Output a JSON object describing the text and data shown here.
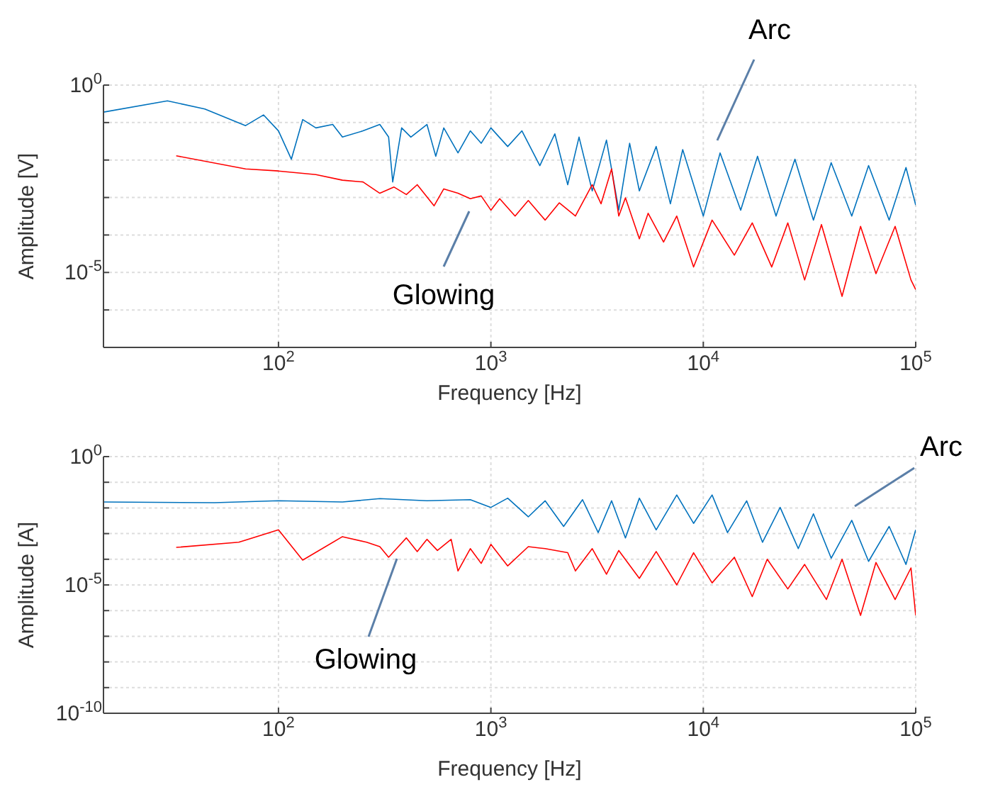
{
  "chart_data": [
    {
      "type": "line",
      "xlabel": "Frequency [Hz]",
      "ylabel": "Amplitude [V]",
      "log": "xy",
      "grid": true,
      "xlim": [
        15,
        100000
      ],
      "ylim": [
        1e-07,
        1
      ],
      "xticks": [
        {
          "value": 100,
          "label": "10$^{2}$"
        },
        {
          "value": 1000,
          "label": "10$^{3}$"
        },
        {
          "value": 10000,
          "label": "10$^{4}$"
        },
        {
          "value": 100000,
          "label": "10$^{5}$"
        }
      ],
      "yticks": [
        {
          "value": 1e-07,
          "label": null
        },
        {
          "value": 1e-06,
          "label": null
        },
        {
          "value": 1e-05,
          "label": "10$^{-5}$"
        },
        {
          "value": 0.0001,
          "label": null
        },
        {
          "value": 0.001,
          "label": null
        },
        {
          "value": 0.01,
          "label": null
        },
        {
          "value": 0.1,
          "label": null
        },
        {
          "value": 1,
          "label": "10$^{0}$"
        }
      ],
      "series": [
        {
          "color": "#0072bd",
          "x": [
            15,
            30,
            45,
            70,
            85,
            100,
            115,
            130,
            150,
            180,
            200,
            250,
            300,
            330,
            345,
            380,
            420,
            500,
            550,
            600,
            700,
            800,
            900,
            1000,
            1200,
            1400,
            1700,
            2000,
            2300,
            2600,
            3000,
            3500,
            4000,
            4500,
            5000,
            6000,
            7000,
            8000,
            10000,
            12000,
            15000,
            18000,
            22000,
            27000,
            33000,
            40000,
            50000,
            60000,
            75000,
            90000,
            100000
          ],
          "values": [
            0.19,
            0.38,
            0.23,
            0.083,
            0.16,
            0.06,
            0.0105,
            0.12,
            0.072,
            0.089,
            0.041,
            0.06,
            0.089,
            0.041,
            0.0026,
            0.072,
            0.041,
            0.089,
            0.0126,
            0.072,
            0.0155,
            0.06,
            0.028,
            0.072,
            0.023,
            0.06,
            0.0071,
            0.05,
            0.0022,
            0.041,
            0.0015,
            0.034,
            0.00046,
            0.028,
            0.0015,
            0.023,
            0.00068,
            0.019,
            0.00032,
            0.0155,
            0.00046,
            0.0126,
            0.00032,
            0.0105,
            0.00025,
            0.0085,
            0.00032,
            0.0071,
            0.00025,
            0.0063,
            0.00063
          ]
        },
        {
          "color": "#ff0000",
          "x": [
            33,
            70,
            100,
            150,
            200,
            250,
            300,
            350,
            400,
            450,
            540,
            600,
            700,
            800,
            900,
            1000,
            1100,
            1300,
            1500,
            1800,
            2100,
            2500,
            3000,
            3300,
            3700,
            4000,
            4300,
            5000,
            5500,
            6500,
            7500,
            9000,
            11000,
            14000,
            17000,
            21000,
            25000,
            30000,
            36000,
            45000,
            55000,
            65000,
            80000,
            95000,
            100000
          ],
          "values": [
            0.013,
            0.0058,
            0.0051,
            0.0041,
            0.0029,
            0.0026,
            0.0013,
            0.0019,
            0.0012,
            0.0022,
            0.0006,
            0.0017,
            0.0013,
            0.00093,
            0.0011,
            0.00046,
            0.00093,
            0.00032,
            0.00083,
            0.00025,
            0.00072,
            0.00032,
            0.0022,
            0.00068,
            0.0058,
            0.00032,
            0.00098,
            7.9e-05,
            0.00038,
            6.5e-05,
            0.00032,
            1.4e-05,
            0.00025,
            2.9e-05,
            0.00021,
            1.4e-05,
            0.00021,
            6.3e-06,
            0.00019,
            2.3e-06,
            0.00017,
            9.3e-06,
            0.00017,
            6.3e-06,
            3.5e-06
          ]
        }
      ],
      "annotations": [
        "Arc",
        "Glowing"
      ]
    },
    {
      "type": "line",
      "xlabel": "Frequency [Hz]",
      "ylabel": "Amplitude [A]",
      "log": "xy",
      "grid": true,
      "xlim": [
        15,
        100000
      ],
      "ylim": [
        1e-10,
        1
      ],
      "xticks": [
        {
          "value": 100,
          "label": "10$^{2}$"
        },
        {
          "value": 1000,
          "label": "10$^{3}$"
        },
        {
          "value": 10000,
          "label": "10$^{4}$"
        },
        {
          "value": 100000,
          "label": "10$^{5}$"
        }
      ],
      "yticks": [
        {
          "value": 1e-10,
          "label": "10$^{-10}$"
        },
        {
          "value": 1e-09,
          "label": null
        },
        {
          "value": 1e-08,
          "label": null
        },
        {
          "value": 1e-07,
          "label": null
        },
        {
          "value": 1e-06,
          "label": null
        },
        {
          "value": 1e-05,
          "label": "10$^{-5}$"
        },
        {
          "value": 0.0001,
          "label": null
        },
        {
          "value": 0.001,
          "label": null
        },
        {
          "value": 0.01,
          "label": null
        },
        {
          "value": 0.1,
          "label": null
        },
        {
          "value": 1,
          "label": "10$^{0}$"
        }
      ],
      "series": [
        {
          "color": "#0072bd",
          "x": [
            15,
            50,
            100,
            200,
            300,
            500,
            800,
            1000,
            1200,
            1500,
            1800,
            2200,
            2700,
            3200,
            3700,
            4300,
            5000,
            6000,
            7500,
            9000,
            11000,
            13000,
            16000,
            19000,
            23000,
            28000,
            33000,
            40000,
            50000,
            60000,
            75000,
            90000,
            100000
          ],
          "values": [
            0.017,
            0.016,
            0.019,
            0.017,
            0.023,
            0.019,
            0.021,
            0.0105,
            0.024,
            0.0045,
            0.019,
            0.0019,
            0.021,
            0.0011,
            0.019,
            0.00068,
            0.024,
            0.0014,
            0.032,
            0.0025,
            0.032,
            0.0011,
            0.019,
            0.00046,
            0.0105,
            0.00026,
            0.0059,
            0.00011,
            0.0033,
            8.3e-05,
            0.0019,
            6.3e-05,
            0.0014
          ]
        },
        {
          "color": "#ff0000",
          "x": [
            33,
            65,
            100,
            130,
            200,
            260,
            300,
            330,
            400,
            450,
            500,
            560,
            650,
            700,
            800,
            900,
            1000,
            1200,
            1500,
            1800,
            2300,
            2500,
            3000,
            3500,
            4000,
            5000,
            6000,
            7500,
            9000,
            11000,
            14000,
            17000,
            20000,
            25000,
            30000,
            38000,
            45000,
            55000,
            65000,
            80000,
            95000,
            100000
          ],
          "values": [
            0.00029,
            0.00046,
            0.0014,
            9.3e-05,
            0.00076,
            0.00046,
            0.00031,
            0.00012,
            0.00068,
            0.0002,
            0.0006,
            0.00022,
            0.0006,
            3.5e-05,
            0.00026,
            6.9e-05,
            0.00038,
            5.5e-05,
            0.00031,
            0.00026,
            0.00018,
            3.5e-05,
            0.00026,
            2.6e-05,
            0.00022,
            1.8e-05,
            0.0002,
            1e-05,
            0.00018,
            1.2e-05,
            0.00012,
            3.5e-06,
            0.0001,
            7e-06,
            6.3e-05,
            2.7e-06,
            0.0001,
            6.5e-07,
            7.5e-05,
            2.7e-06,
            4.6e-05,
            6.5e-07
          ]
        }
      ],
      "annotations": [
        "Arc",
        "Glowing"
      ]
    }
  ]
}
